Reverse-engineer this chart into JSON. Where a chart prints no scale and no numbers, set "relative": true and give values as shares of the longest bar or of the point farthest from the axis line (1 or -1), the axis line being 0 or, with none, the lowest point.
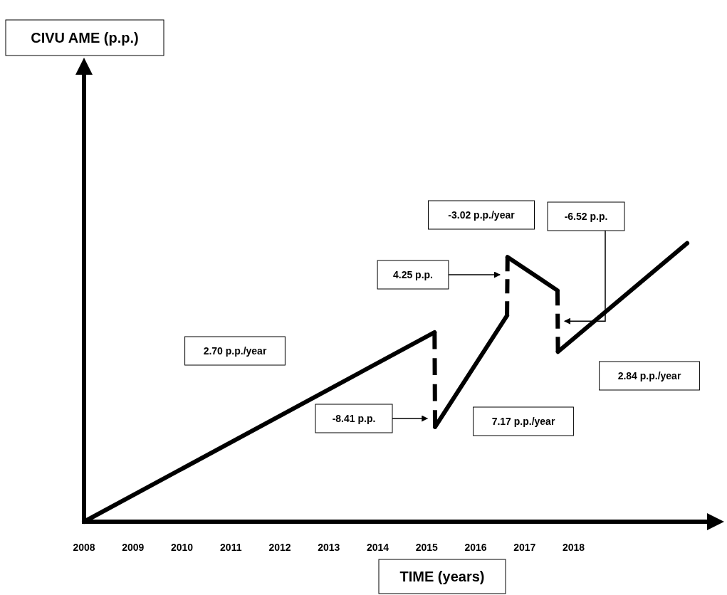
{
  "chart_data": {
    "type": "line",
    "relative": true,
    "xlabel": "TIME (years)",
    "xlim": [
      2008,
      2020.9
    ],
    "xticks": [
      2008,
      2009,
      2010,
      2011,
      2012,
      2013,
      2014,
      2015,
      2016,
      2017,
      2018
    ],
    "series": [
      {
        "color": "#000000",
        "line_style": "solid",
        "x": [
          2008,
          2015.16
        ],
        "values": [
          0,
          0.68
        ]
      },
      {
        "color": "#000000",
        "line_style": "dashed",
        "x": [
          2015.16,
          2015.17
        ],
        "values": [
          0.68,
          0.34
        ]
      },
      {
        "color": "#000000",
        "line_style": "solid",
        "x": [
          2015.17,
          2016.64
        ],
        "values": [
          0.34,
          0.74
        ]
      },
      {
        "color": "#000000",
        "line_style": "dashed",
        "x": [
          2016.64,
          2016.65
        ],
        "values": [
          0.74,
          0.95
        ]
      },
      {
        "color": "#000000",
        "line_style": "solid",
        "x": [
          2016.65,
          2017.67
        ],
        "values": [
          0.95,
          0.83
        ]
      },
      {
        "color": "#000000",
        "line_style": "dashed",
        "x": [
          2017.67,
          2017.68
        ],
        "values": [
          0.83,
          0.61
        ]
      },
      {
        "color": "#000000",
        "line_style": "solid",
        "x": [
          2017.68,
          2020.32
        ],
        "values": [
          0.61,
          1
        ]
      }
    ],
    "annotations": [
      "2.70 p.p./year",
      "-8.41 p.p.",
      "7.17 p.p./year",
      "4.25 p.p.",
      "-3.02 p.p./year",
      "-6.52 p.p.",
      "2.84 p.p./year",
      "CIVU AME (p.p.)"
    ],
    "grid": false,
    "marker": "none"
  }
}
